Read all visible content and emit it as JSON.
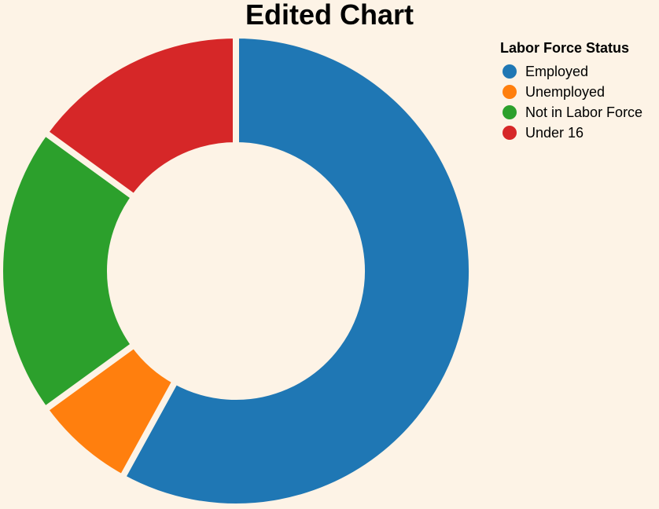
{
  "chart_data": {
    "type": "pie",
    "style": "donut",
    "title": "Edited Chart",
    "legend": {
      "title": "Labor Force Status",
      "position": "top-right"
    },
    "categories": [
      "Employed",
      "Unemployed",
      "Not in Labor Force",
      "Under 16"
    ],
    "values": [
      58,
      7,
      20,
      15
    ],
    "colors": [
      "#1f77b4",
      "#ff7f0e",
      "#2ca02c",
      "#d62728"
    ],
    "background": "#fdf3e6"
  }
}
